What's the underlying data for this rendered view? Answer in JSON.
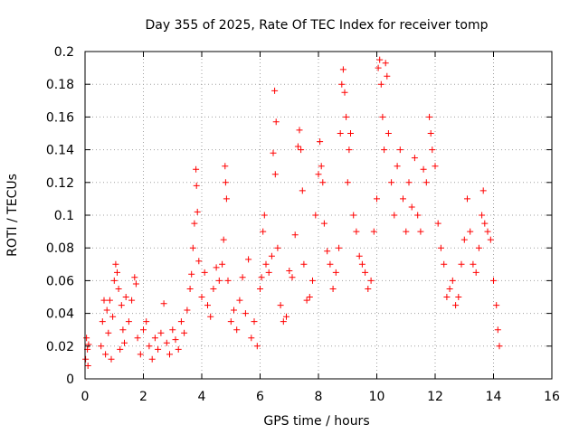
{
  "chart_data": {
    "type": "scatter",
    "title": "Day 355 of 2025, Rate Of TEC Index for receiver tomp",
    "xlabel": "GPS time / hours",
    "ylabel": "ROTI / TECUs",
    "xlim": [
      0,
      16
    ],
    "ylim": [
      0,
      0.2
    ],
    "xticks": [
      0,
      2,
      4,
      6,
      8,
      10,
      12,
      14,
      16
    ],
    "xtick_labels": [
      "0",
      "2",
      "4",
      "6",
      "8",
      "10",
      "12",
      "14",
      "16"
    ],
    "yticks": [
      0,
      0.02,
      0.04,
      0.06,
      0.08,
      0.1,
      0.12,
      0.14,
      0.16,
      0.18,
      0.2
    ],
    "ytick_labels": [
      "0",
      "0.02",
      "0.04",
      "0.06",
      "0.08",
      "0.1",
      "0.12",
      "0.14",
      "0.16",
      "0.18",
      "0.2"
    ],
    "grid": true,
    "marker": "+",
    "color": "#ff0000",
    "series": [
      {
        "name": "ROTI",
        "points": [
          [
            0.02,
            0.012
          ],
          [
            0.05,
            0.025
          ],
          [
            0.08,
            0.018
          ],
          [
            0.1,
            0.008
          ],
          [
            0.12,
            0.021
          ],
          [
            0.55,
            0.02
          ],
          [
            0.6,
            0.035
          ],
          [
            0.65,
            0.048
          ],
          [
            0.7,
            0.015
          ],
          [
            0.75,
            0.042
          ],
          [
            0.8,
            0.028
          ],
          [
            0.85,
            0.048
          ],
          [
            0.9,
            0.012
          ],
          [
            0.95,
            0.038
          ],
          [
            1.0,
            0.06
          ],
          [
            1.05,
            0.07
          ],
          [
            1.1,
            0.065
          ],
          [
            1.15,
            0.055
          ],
          [
            1.2,
            0.018
          ],
          [
            1.25,
            0.045
          ],
          [
            1.3,
            0.03
          ],
          [
            1.35,
            0.022
          ],
          [
            1.4,
            0.05
          ],
          [
            1.5,
            0.035
          ],
          [
            1.6,
            0.048
          ],
          [
            1.7,
            0.062
          ],
          [
            1.75,
            0.058
          ],
          [
            1.8,
            0.025
          ],
          [
            1.9,
            0.015
          ],
          [
            2.0,
            0.03
          ],
          [
            2.1,
            0.035
          ],
          [
            2.2,
            0.02
          ],
          [
            2.3,
            0.012
          ],
          [
            2.4,
            0.025
          ],
          [
            2.5,
            0.018
          ],
          [
            2.6,
            0.028
          ],
          [
            2.7,
            0.046
          ],
          [
            2.8,
            0.022
          ],
          [
            2.9,
            0.015
          ],
          [
            3.0,
            0.03
          ],
          [
            3.1,
            0.024
          ],
          [
            3.2,
            0.018
          ],
          [
            3.3,
            0.035
          ],
          [
            3.4,
            0.028
          ],
          [
            3.5,
            0.042
          ],
          [
            3.6,
            0.055
          ],
          [
            3.65,
            0.064
          ],
          [
            3.7,
            0.08
          ],
          [
            3.75,
            0.095
          ],
          [
            3.8,
            0.128
          ],
          [
            3.82,
            0.118
          ],
          [
            3.85,
            0.102
          ],
          [
            3.9,
            0.072
          ],
          [
            4.0,
            0.05
          ],
          [
            4.1,
            0.065
          ],
          [
            4.2,
            0.045
          ],
          [
            4.3,
            0.038
          ],
          [
            4.4,
            0.055
          ],
          [
            4.5,
            0.068
          ],
          [
            4.6,
            0.06
          ],
          [
            4.7,
            0.07
          ],
          [
            4.75,
            0.085
          ],
          [
            4.8,
            0.13
          ],
          [
            4.82,
            0.12
          ],
          [
            4.85,
            0.11
          ],
          [
            4.9,
            0.06
          ],
          [
            5.0,
            0.035
          ],
          [
            5.1,
            0.042
          ],
          [
            5.2,
            0.03
          ],
          [
            5.3,
            0.048
          ],
          [
            5.4,
            0.062
          ],
          [
            5.5,
            0.04
          ],
          [
            5.6,
            0.073
          ],
          [
            5.7,
            0.025
          ],
          [
            5.8,
            0.035
          ],
          [
            5.9,
            0.02
          ],
          [
            6.0,
            0.055
          ],
          [
            6.05,
            0.062
          ],
          [
            6.1,
            0.09
          ],
          [
            6.15,
            0.1
          ],
          [
            6.2,
            0.07
          ],
          [
            6.3,
            0.065
          ],
          [
            6.4,
            0.075
          ],
          [
            6.45,
            0.138
          ],
          [
            6.5,
            0.176
          ],
          [
            6.55,
            0.157
          ],
          [
            6.52,
            0.125
          ],
          [
            6.6,
            0.08
          ],
          [
            6.7,
            0.045
          ],
          [
            6.8,
            0.035
          ],
          [
            6.9,
            0.038
          ],
          [
            7.0,
            0.066
          ],
          [
            7.1,
            0.062
          ],
          [
            7.2,
            0.088
          ],
          [
            7.3,
            0.142
          ],
          [
            7.35,
            0.152
          ],
          [
            7.4,
            0.14
          ],
          [
            7.45,
            0.115
          ],
          [
            7.5,
            0.07
          ],
          [
            7.6,
            0.048
          ],
          [
            7.7,
            0.05
          ],
          [
            7.8,
            0.06
          ],
          [
            7.9,
            0.1
          ],
          [
            8.0,
            0.125
          ],
          [
            8.05,
            0.145
          ],
          [
            8.1,
            0.13
          ],
          [
            8.15,
            0.12
          ],
          [
            8.2,
            0.095
          ],
          [
            8.3,
            0.078
          ],
          [
            8.4,
            0.07
          ],
          [
            8.5,
            0.055
          ],
          [
            8.6,
            0.065
          ],
          [
            8.7,
            0.08
          ],
          [
            8.75,
            0.15
          ],
          [
            8.8,
            0.18
          ],
          [
            8.85,
            0.189
          ],
          [
            8.9,
            0.175
          ],
          [
            8.95,
            0.16
          ],
          [
            9.0,
            0.12
          ],
          [
            9.05,
            0.14
          ],
          [
            9.1,
            0.15
          ],
          [
            9.2,
            0.1
          ],
          [
            9.3,
            0.09
          ],
          [
            9.4,
            0.075
          ],
          [
            9.5,
            0.07
          ],
          [
            9.6,
            0.065
          ],
          [
            9.7,
            0.055
          ],
          [
            9.8,
            0.06
          ],
          [
            9.9,
            0.09
          ],
          [
            10.0,
            0.11
          ],
          [
            10.05,
            0.19
          ],
          [
            10.1,
            0.195
          ],
          [
            10.15,
            0.18
          ],
          [
            10.2,
            0.16
          ],
          [
            10.25,
            0.14
          ],
          [
            10.3,
            0.193
          ],
          [
            10.35,
            0.185
          ],
          [
            10.4,
            0.15
          ],
          [
            10.5,
            0.12
          ],
          [
            10.6,
            0.1
          ],
          [
            10.7,
            0.13
          ],
          [
            10.8,
            0.14
          ],
          [
            10.9,
            0.11
          ],
          [
            11.0,
            0.09
          ],
          [
            11.1,
            0.12
          ],
          [
            11.2,
            0.105
          ],
          [
            11.3,
            0.135
          ],
          [
            11.4,
            0.1
          ],
          [
            11.5,
            0.09
          ],
          [
            11.6,
            0.128
          ],
          [
            11.7,
            0.12
          ],
          [
            11.8,
            0.16
          ],
          [
            11.85,
            0.15
          ],
          [
            11.9,
            0.14
          ],
          [
            12.0,
            0.13
          ],
          [
            12.1,
            0.095
          ],
          [
            12.2,
            0.08
          ],
          [
            12.3,
            0.07
          ],
          [
            12.4,
            0.05
          ],
          [
            12.5,
            0.055
          ],
          [
            12.6,
            0.06
          ],
          [
            12.7,
            0.045
          ],
          [
            12.8,
            0.05
          ],
          [
            12.9,
            0.07
          ],
          [
            13.0,
            0.085
          ],
          [
            13.1,
            0.11
          ],
          [
            13.2,
            0.09
          ],
          [
            13.3,
            0.07
          ],
          [
            13.4,
            0.065
          ],
          [
            13.5,
            0.08
          ],
          [
            13.6,
            0.1
          ],
          [
            13.65,
            0.115
          ],
          [
            13.7,
            0.095
          ],
          [
            13.8,
            0.09
          ],
          [
            13.9,
            0.085
          ],
          [
            14.0,
            0.06
          ],
          [
            14.1,
            0.045
          ],
          [
            14.15,
            0.03
          ],
          [
            14.2,
            0.02
          ]
        ]
      }
    ]
  }
}
